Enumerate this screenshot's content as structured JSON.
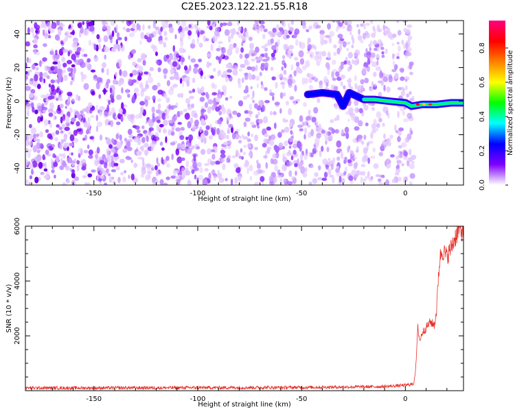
{
  "title": "C2E5.2023.122.21.55.R18",
  "chart_data": [
    {
      "type": "heatmap",
      "xlabel": "Height of straight line (km)",
      "ylabel": "Frequency (Hz)",
      "xlim": [
        -183,
        28
      ],
      "ylim": [
        -50,
        48
      ],
      "xticks": [
        -150,
        -100,
        -50,
        0
      ],
      "yticks": [
        -40,
        -20,
        0,
        20,
        40
      ],
      "noise_region_x": [
        -183,
        4
      ],
      "signal_track": [
        {
          "x": -47,
          "y": 4
        },
        {
          "x": -40,
          "y": 5
        },
        {
          "x": -33,
          "y": 4
        },
        {
          "x": -30,
          "y": -3
        },
        {
          "x": -27,
          "y": 5
        },
        {
          "x": -20,
          "y": 1
        },
        {
          "x": -15,
          "y": 1
        },
        {
          "x": -8,
          "y": 0
        },
        {
          "x": 0,
          "y": -1
        },
        {
          "x": 3,
          "y": -3
        },
        {
          "x": 8,
          "y": -2
        },
        {
          "x": 15,
          "y": -2
        },
        {
          "x": 22,
          "y": -1
        },
        {
          "x": 28,
          "y": -1
        }
      ],
      "colorbar": {
        "label": "Normalized spectral amplitude",
        "range": [
          0,
          1
        ],
        "ticks": [
          "0.0",
          "0.2",
          "0.4",
          "0.6",
          "0.8"
        ],
        "colors": [
          "#ffffff",
          "#7f00ff",
          "#0000ff",
          "#00ffff",
          "#00ff00",
          "#ffff00",
          "#ff7f00",
          "#ff0000",
          "#ff0080"
        ]
      }
    },
    {
      "type": "line",
      "xlabel": "Height of straight line (km)",
      "ylabel": "SNR (10 * v/v)",
      "xlim": [
        -183,
        28
      ],
      "ylim": [
        0,
        6000
      ],
      "xticks": [
        -150,
        -100,
        -50,
        0
      ],
      "yticks": [
        2000,
        4000,
        6000
      ],
      "color": "#e8302a",
      "series": [
        {
          "x": [
            -183,
            -150,
            -100,
            -50,
            -10,
            0,
            4,
            5,
            6,
            7,
            8,
            10,
            12,
            14,
            15,
            16,
            17,
            18,
            20,
            22,
            24,
            26,
            28
          ],
          "y": [
            100,
            100,
            110,
            120,
            150,
            200,
            250,
            800,
            2300,
            1800,
            2100,
            2300,
            2500,
            2400,
            2900,
            4300,
            5000,
            5100,
            4900,
            5200,
            5600,
            5900,
            5800
          ]
        }
      ]
    }
  ]
}
